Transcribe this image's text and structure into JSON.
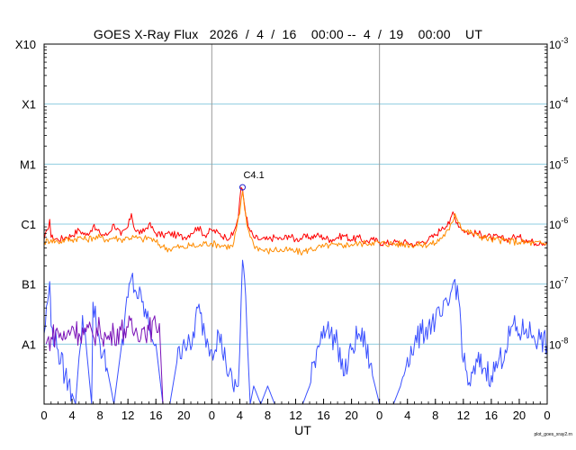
{
  "chart_data": {
    "type": "line",
    "title": "GOES X-Ray Flux   2026  /  4  /  16    00:00 --  4  /  19    00:00    UT",
    "xlabel": "UT",
    "ylabel": "",
    "scale": "log",
    "ylim": [
      1e-09,
      0.001
    ],
    "x_unit": "hours since 2026-04-16 00:00 UT",
    "xlim": [
      0,
      72
    ],
    "x_ticks": [
      0,
      4,
      8,
      12,
      16,
      20,
      24,
      28,
      32,
      36,
      40,
      44,
      48,
      52,
      56,
      60,
      64,
      68,
      72
    ],
    "x_tick_labels": [
      "0",
      "4",
      "8",
      "12",
      "16",
      "20",
      "0",
      "4",
      "8",
      "12",
      "16",
      "20",
      "0",
      "4",
      "8",
      "12",
      "16",
      "20",
      "0"
    ],
    "day_boundaries": [
      24,
      48
    ],
    "left_tick_labels": [
      "A1",
      "B1",
      "C1",
      "M1",
      "X1",
      "X10"
    ],
    "left_tick_values": [
      1e-08,
      1e-07,
      1e-06,
      1e-05,
      0.0001,
      0.001
    ],
    "right_tick_labels": [
      "10^-8",
      "10^-7",
      "10^-6",
      "10^-5",
      "10^-4",
      "10^-3"
    ],
    "flare_annotation": {
      "label": "C4.1",
      "x": 28.4,
      "y": 4.1e-06
    },
    "grid": true,
    "colors": {
      "long_primary": "#ff0000",
      "long_secondary": "#ff8c00",
      "short_primary": "#3a50ff",
      "short_secondary": "#7a12b8",
      "grid": "#8ecde0",
      "day_line": "#9a9a9a"
    },
    "series": [
      {
        "key": "long_primary",
        "x": [
          0,
          0.5,
          0.8,
          1,
          2,
          3,
          4,
          5,
          6,
          7,
          8,
          9,
          10,
          11,
          12,
          12.5,
          13,
          14,
          15,
          16,
          17,
          18,
          19,
          20,
          21,
          22,
          23,
          24,
          25,
          26,
          27,
          27.8,
          28.2,
          28.4,
          28.7,
          29.2,
          30,
          31,
          32,
          33,
          34,
          35,
          36,
          37,
          38,
          39,
          40,
          41,
          42,
          43,
          44,
          45,
          46,
          47,
          48,
          49,
          50,
          51,
          52,
          53,
          54,
          55,
          56,
          57,
          58,
          58.5,
          58.8,
          59.5,
          60,
          61,
          62,
          63,
          64,
          65,
          66,
          67,
          68,
          69,
          70,
          71,
          72
        ],
        "values": [
          5.5e-07,
          8e-07,
          1.2e-06,
          6e-07,
          5.5e-07,
          6e-07,
          6.5e-07,
          8e-07,
          6.5e-07,
          9e-07,
          7e-07,
          6.5e-07,
          1e-06,
          6.5e-07,
          9e-07,
          1.5e-06,
          8e-07,
          7e-07,
          1e-06,
          7e-07,
          6.5e-07,
          7e-07,
          6.5e-07,
          6e-07,
          7e-07,
          9e-07,
          6.5e-07,
          8e-07,
          7e-07,
          6e-07,
          6.5e-07,
          1.3e-06,
          4.1e-06,
          3.8e-06,
          2e-06,
          9e-07,
          6e-07,
          5.5e-07,
          5.5e-07,
          6e-07,
          5.5e-07,
          6.5e-07,
          5.5e-07,
          6e-07,
          6e-07,
          6.5e-07,
          6e-07,
          5.5e-07,
          6e-07,
          6.5e-07,
          5.5e-07,
          6e-07,
          5e-07,
          5.5e-07,
          5e-07,
          4.8e-07,
          5e-07,
          4.8e-07,
          5e-07,
          4.5e-07,
          5e-07,
          5.5e-07,
          6.5e-07,
          9e-07,
          1e-06,
          1.6e-06,
          1.3e-06,
          9e-07,
          8e-07,
          7e-07,
          7e-07,
          6.5e-07,
          6e-07,
          6e-07,
          5.5e-07,
          6e-07,
          6e-07,
          5.5e-07,
          5e-07,
          5e-07,
          5e-07
        ]
      },
      {
        "key": "long_secondary",
        "x": [
          0,
          1,
          2,
          3,
          4,
          5,
          6,
          7,
          8,
          9,
          10,
          11,
          12,
          13,
          14,
          15,
          16,
          17,
          18,
          19,
          20,
          21,
          22,
          23,
          24,
          25,
          26,
          27,
          28,
          28.4,
          29,
          30,
          31,
          32,
          33,
          34,
          35,
          36,
          37,
          38,
          39,
          40,
          41,
          42,
          43,
          44,
          45,
          46,
          47,
          48,
          50,
          52,
          54,
          56,
          58,
          58.8,
          60,
          62,
          64,
          66,
          68,
          70,
          72
        ],
        "values": [
          5e-07,
          5.5e-07,
          5e-07,
          5.5e-07,
          5.5e-07,
          6e-07,
          5.5e-07,
          6e-07,
          6e-07,
          5.5e-07,
          6e-07,
          5.5e-07,
          6e-07,
          6e-07,
          5.5e-07,
          6e-07,
          5e-07,
          4.2e-07,
          3.8e-07,
          4.2e-07,
          4e-07,
          4.5e-07,
          4.2e-07,
          4.8e-07,
          4.8e-07,
          4.5e-07,
          4.3e-07,
          4.2e-07,
          1.5e-06,
          3.5e-06,
          1e-06,
          4.5e-07,
          3.8e-07,
          3.5e-07,
          3.8e-07,
          3.6e-07,
          3.7e-07,
          3.5e-07,
          3.4e-07,
          3.8e-07,
          4e-07,
          4.2e-07,
          4.5e-07,
          4.3e-07,
          4.5e-07,
          4.6e-07,
          4.7e-07,
          4.8e-07,
          5e-07,
          4.8e-07,
          4.7e-07,
          4.6e-07,
          4.5e-07,
          4.8e-07,
          8e-07,
          1.5e-06,
          8e-07,
          6.5e-07,
          5.5e-07,
          5.3e-07,
          5e-07,
          4.8e-07,
          4.7e-07
        ]
      },
      {
        "key": "short_primary",
        "x": [
          0,
          0.5,
          0.8,
          1,
          2,
          3,
          4,
          4.5,
          5,
          5.5,
          6,
          6.8,
          7,
          8,
          9,
          10,
          11,
          12,
          12.5,
          13,
          14,
          15,
          16,
          17,
          18,
          19,
          20,
          21,
          22,
          23,
          24,
          25,
          26,
          27,
          27.8,
          28.2,
          28.4,
          28.7,
          29,
          29.5,
          30,
          31,
          32,
          33,
          34,
          35,
          36,
          37,
          38,
          39,
          40,
          41,
          42,
          43,
          44,
          45,
          46,
          47,
          48,
          49,
          50,
          51,
          52,
          53,
          54,
          55,
          56,
          57,
          58,
          58.5,
          58.8,
          59.5,
          60,
          61,
          62,
          63,
          64,
          65,
          66,
          67,
          68,
          69,
          70,
          71,
          72
        ],
        "values": [
          1.5e-08,
          5e-08,
          1.1e-07,
          2e-08,
          8e-09,
          3e-09,
          1.5e-09,
          1e-09,
          6e-09,
          3e-08,
          1e-08,
          1e-09,
          5e-08,
          1e-08,
          4e-09,
          1e-09,
          8e-09,
          6e-08,
          1.3e-07,
          8e-08,
          5e-08,
          2e-08,
          1e-08,
          1e-09,
          1e-09,
          5e-09,
          1.2e-08,
          8e-09,
          4e-08,
          1.5e-08,
          8e-09,
          1.5e-08,
          5e-09,
          2e-09,
          2e-09,
          5e-08,
          2.5e-07,
          1.2e-07,
          2e-08,
          1e-09,
          2e-09,
          1e-09,
          2e-09,
          1e-09,
          1e-09,
          1e-09,
          1e-09,
          1e-09,
          2e-09,
          8e-09,
          2e-08,
          1.5e-08,
          1e-08,
          3e-09,
          8e-09,
          1.5e-08,
          1e-08,
          3e-09,
          1e-09,
          1e-09,
          1e-09,
          2e-09,
          6e-09,
          1e-08,
          1.5e-08,
          2e-08,
          2.5e-08,
          3e-08,
          5e-08,
          1e-07,
          1.2e-07,
          4e-08,
          5e-09,
          2e-09,
          5e-09,
          4e-09,
          3e-09,
          5e-09,
          8e-09,
          2e-08,
          1.5e-08,
          1.8e-08,
          1.4e-08,
          1.2e-08,
          1e-08
        ]
      },
      {
        "key": "short_secondary",
        "x": [
          0.3,
          1,
          2,
          3,
          4,
          5,
          6,
          7,
          8,
          9,
          10,
          11,
          12,
          13,
          14,
          15,
          16,
          16.5,
          17,
          18,
          20,
          22,
          24,
          26,
          27.8,
          28.2,
          28.4,
          28.7,
          29,
          29.5,
          30,
          31,
          32,
          33,
          34,
          35,
          36,
          37,
          38,
          39,
          40,
          41,
          42,
          43,
          44,
          45,
          46,
          47,
          48,
          49,
          50,
          51,
          52,
          53,
          54,
          55,
          56,
          57,
          58,
          58.5,
          58.8,
          59.5,
          60,
          61,
          62,
          63,
          64,
          65,
          66,
          67,
          68,
          69,
          70,
          71,
          72
        ],
        "values": [
          1e-08,
          1.3e-08,
          1.6e-08,
          1.2e-08,
          2e-08,
          1.5e-08,
          1.6e-08,
          1.4e-08,
          1.8e-08,
          1.2e-08,
          1.5e-08,
          1.7e-08,
          1.9e-08,
          1.6e-08,
          1.8e-08,
          1.7e-08,
          2e-08,
          2.2e-08,
          1e-09,
          1e-09,
          1e-09,
          1e-09,
          1e-09,
          1e-09,
          1e-09,
          1e-09,
          1e-09,
          1e-09,
          1e-09,
          1e-09,
          1e-09,
          1e-09,
          1e-09,
          1e-09,
          1e-09,
          1e-09,
          1e-09,
          1e-09,
          1e-09,
          1e-09,
          1e-09,
          1e-09,
          1e-09,
          1e-09,
          1e-09,
          1e-09,
          1e-09,
          1e-09,
          1e-09,
          1e-09,
          1e-09,
          1e-09,
          1e-09,
          1e-09,
          1e-09,
          1e-09,
          1e-09,
          1e-09,
          1e-09,
          1e-09,
          1e-09,
          1e-09,
          1e-09,
          1e-09,
          1e-09,
          1e-09,
          1e-09,
          1e-09,
          1e-09,
          1e-09,
          1e-09,
          1e-09,
          1e-09,
          1e-09,
          1e-09
        ]
      }
    ]
  },
  "credit": "plot_goes_xray2.rn"
}
